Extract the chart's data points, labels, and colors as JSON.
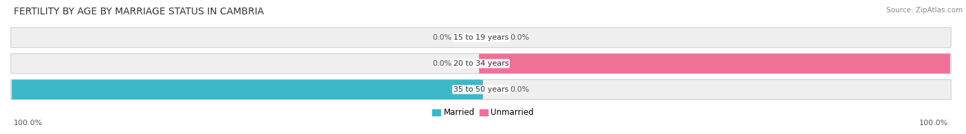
{
  "title": "FERTILITY BY AGE BY MARRIAGE STATUS IN CAMBRIA",
  "source": "Source: ZipAtlas.com",
  "categories": [
    "15 to 19 years",
    "20 to 34 years",
    "35 to 50 years"
  ],
  "married_values": [
    0.0,
    0.0,
    100.0
  ],
  "unmarried_values": [
    0.0,
    100.0,
    0.0
  ],
  "married_color": "#3db8c8",
  "unmarried_color": "#f07098",
  "bar_bg_color": "#efefef",
  "title_fontsize": 10,
  "source_fontsize": 7.5,
  "label_fontsize": 8,
  "category_fontsize": 8,
  "legend_fontsize": 8.5,
  "axis_label_fontsize": 8,
  "background_color": "#ffffff"
}
